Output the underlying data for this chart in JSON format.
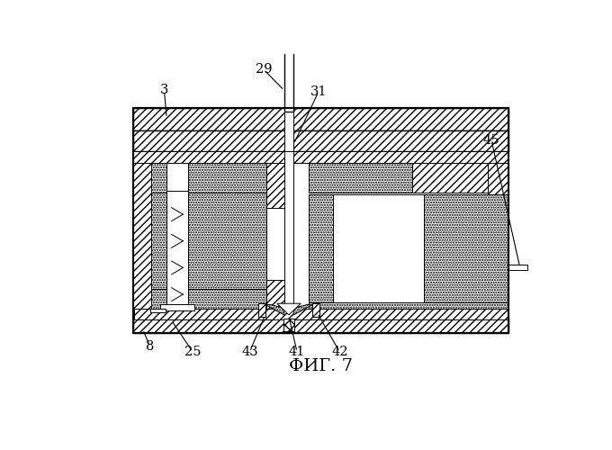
{
  "title": "ФИГ. 7",
  "title_fontsize": 14,
  "bg_color": "#ffffff",
  "line_color": "#000000",
  "fig_l": 0.12,
  "fig_r": 0.91,
  "fig_b": 0.195,
  "fig_t": 0.845
}
